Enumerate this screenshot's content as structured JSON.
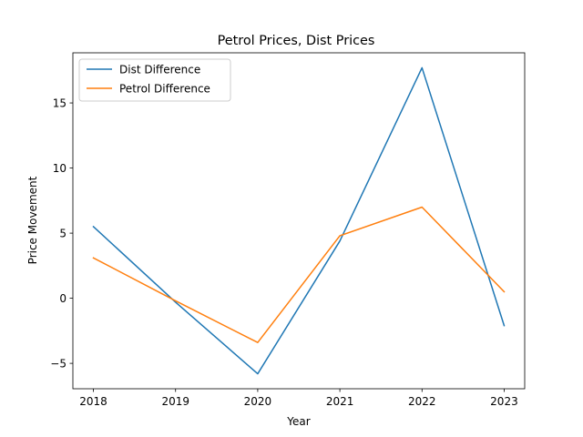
{
  "chart_data": {
    "type": "line",
    "title": "Petrol Prices, Dist Prices",
    "xlabel": "Year",
    "ylabel": "Price Movement",
    "x": [
      2018,
      2019,
      2020,
      2021,
      2022,
      2023
    ],
    "xlim": [
      2017.75,
      2023.25
    ],
    "ylim": [
      -6.95,
      18.85
    ],
    "yticks": [
      -5,
      0,
      5,
      10,
      15
    ],
    "series": [
      {
        "name": "Dist Difference",
        "color": "#1f77b4",
        "values": [
          5.5,
          -0.3,
          -5.8,
          4.4,
          17.7,
          -2.1
        ]
      },
      {
        "name": "Petrol Difference",
        "color": "#ff7f0e",
        "values": [
          3.1,
          -0.2,
          -3.4,
          4.8,
          7.0,
          0.5
        ]
      }
    ],
    "grid": false,
    "legend_position": "upper-left"
  }
}
